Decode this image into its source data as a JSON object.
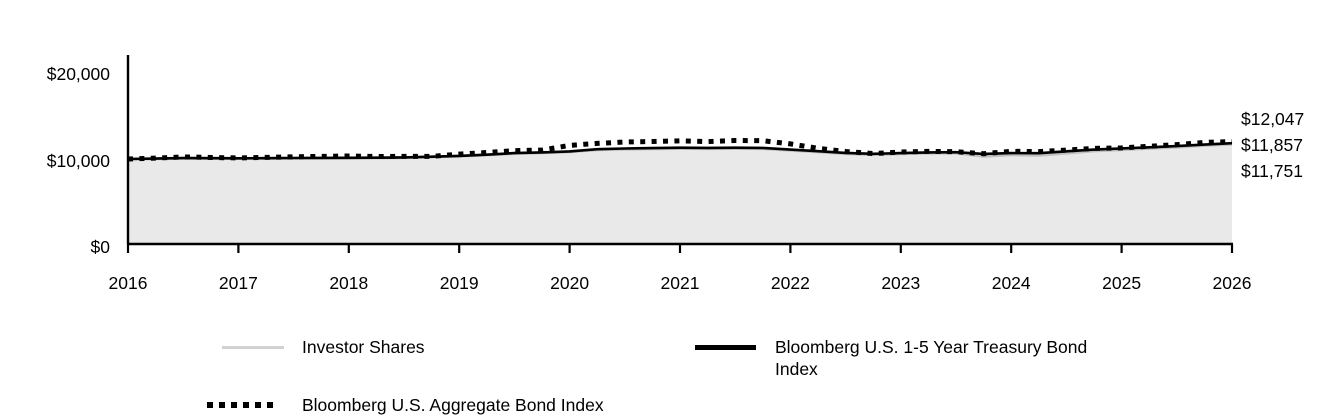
{
  "figure": {
    "kind": "growth-of-10000-line-chart",
    "background": "#ffffff"
  },
  "colors": {
    "investor_line": "#c0c0c0",
    "legend_gray_swatch": "#d2d2d2",
    "area_fill": "#e9e9e9",
    "index_line": "#000000",
    "axis": "#000000",
    "text": "#000000"
  },
  "chart_data": {
    "type": "line",
    "title": "",
    "xlabel": "",
    "ylabel": "",
    "xlim": [
      2016,
      2026
    ],
    "ylim": [
      0,
      20000
    ],
    "grid": false,
    "legend_position": "bottom",
    "y_tick_labels": [
      "$20,000",
      "$10,000",
      "$0"
    ],
    "y_tick_values": [
      20000,
      10000,
      0
    ],
    "x_tick_labels": [
      "2016",
      "2017",
      "2018",
      "2019",
      "2020",
      "2021",
      "2022",
      "2023",
      "2024",
      "2025",
      "2026"
    ],
    "end_labels": [
      "$12,047",
      "$11,857",
      "$11,751"
    ],
    "x": [
      2016,
      2016.25,
      2016.5,
      2016.75,
      2017,
      2017.25,
      2017.5,
      2017.75,
      2018,
      2018.25,
      2018.5,
      2018.75,
      2019,
      2019.25,
      2019.5,
      2019.75,
      2020,
      2020.25,
      2020.5,
      2020.75,
      2021,
      2021.25,
      2021.5,
      2021.75,
      2022,
      2022.25,
      2022.5,
      2022.75,
      2023,
      2023.25,
      2023.5,
      2023.75,
      2024,
      2024.25,
      2024.5,
      2024.75,
      2025,
      2025.25,
      2025.5,
      2025.75,
      2026
    ],
    "series": [
      {
        "name": "Investor Shares",
        "style": "solid",
        "color": "#c0c0c0",
        "width": 3,
        "area": true,
        "final_value": 11751,
        "final_label": "$11,751",
        "values": [
          10000,
          10040,
          10090,
          10080,
          10060,
          10080,
          10100,
          10110,
          10110,
          10130,
          10170,
          10240,
          10340,
          10480,
          10650,
          10740,
          10850,
          11080,
          11170,
          11210,
          11240,
          11220,
          11240,
          11220,
          11030,
          10830,
          10630,
          10520,
          10610,
          10700,
          10720,
          10300,
          10500,
          10450,
          10700,
          10950,
          11100,
          11250,
          11400,
          11600,
          11751
        ]
      },
      {
        "name": "Bloomberg U.S. 1-5 Year Treasury Bond Index",
        "style": "solid",
        "color": "#000000",
        "width": 2.6,
        "area": false,
        "final_value": 11857,
        "final_label": "$11,857",
        "values": [
          10000,
          10050,
          10110,
          10090,
          10080,
          10090,
          10120,
          10130,
          10140,
          10150,
          10190,
          10270,
          10370,
          10510,
          10690,
          10780,
          10890,
          11150,
          11240,
          11280,
          11330,
          11310,
          11330,
          11310,
          11110,
          10920,
          10720,
          10610,
          10700,
          10780,
          10800,
          10600,
          10700,
          10680,
          10900,
          11100,
          11250,
          11380,
          11520,
          11700,
          11857
        ]
      },
      {
        "name": "Bloomberg U.S. Aggregate Bond Index",
        "style": "dotted",
        "color": "#000000",
        "width": 5,
        "area": false,
        "final_value": 12047,
        "final_label": "$12,047",
        "values": [
          10000,
          10110,
          10250,
          10180,
          10130,
          10190,
          10260,
          10300,
          10350,
          10290,
          10310,
          10300,
          10580,
          10770,
          10990,
          11050,
          11600,
          11830,
          12000,
          12060,
          12140,
          12050,
          12180,
          12150,
          11780,
          11260,
          10880,
          10640,
          10820,
          10890,
          10860,
          10620,
          10900,
          10870,
          11050,
          11250,
          11300,
          11500,
          11700,
          11950,
          12047
        ]
      }
    ]
  },
  "legend": {
    "items": [
      {
        "label": "Investor Shares",
        "swatch": "solid-gray"
      },
      {
        "label": "Bloomberg U.S. 1-5 Year Treasury Bond Index",
        "swatch": "solid-black"
      },
      {
        "label": "Bloomberg U.S. Aggregate Bond Index",
        "swatch": "dotted-black"
      }
    ]
  }
}
